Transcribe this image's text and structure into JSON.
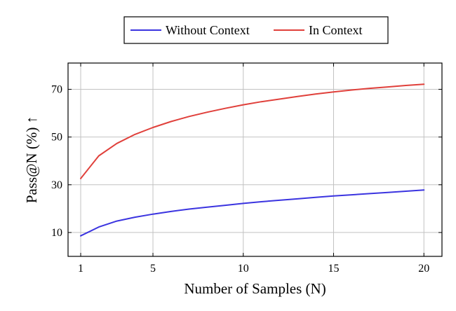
{
  "chart_data": {
    "type": "line",
    "title": "",
    "xlabel": "Number of Samples (N)",
    "ylabel": "Pass@N (%) ↑",
    "xlim": [
      0.3,
      21
    ],
    "ylim": [
      0,
      81
    ],
    "xticks": [
      1,
      5,
      10,
      15,
      20
    ],
    "yticks": [
      10,
      30,
      50,
      70
    ],
    "grid": true,
    "legend_position": "top-center",
    "x": [
      1,
      2,
      3,
      4,
      5,
      6,
      7,
      8,
      9,
      10,
      11,
      12,
      13,
      14,
      15,
      16,
      17,
      18,
      19,
      20
    ],
    "series": [
      {
        "name": "Without Context",
        "color": "#3b34e0",
        "values": [
          8.6,
          12.3,
          14.8,
          16.4,
          17.7,
          18.8,
          19.8,
          20.6,
          21.4,
          22.2,
          22.9,
          23.5,
          24.1,
          24.7,
          25.3,
          25.8,
          26.3,
          26.8,
          27.3,
          27.8
        ]
      },
      {
        "name": "In Context",
        "color": "#e0403b",
        "values": [
          32.6,
          42.1,
          47.3,
          51.1,
          54.0,
          56.5,
          58.6,
          60.4,
          62.0,
          63.5,
          64.8,
          65.9,
          67.0,
          68.0,
          68.9,
          69.7,
          70.4,
          71.0,
          71.6,
          72.1
        ]
      }
    ]
  }
}
